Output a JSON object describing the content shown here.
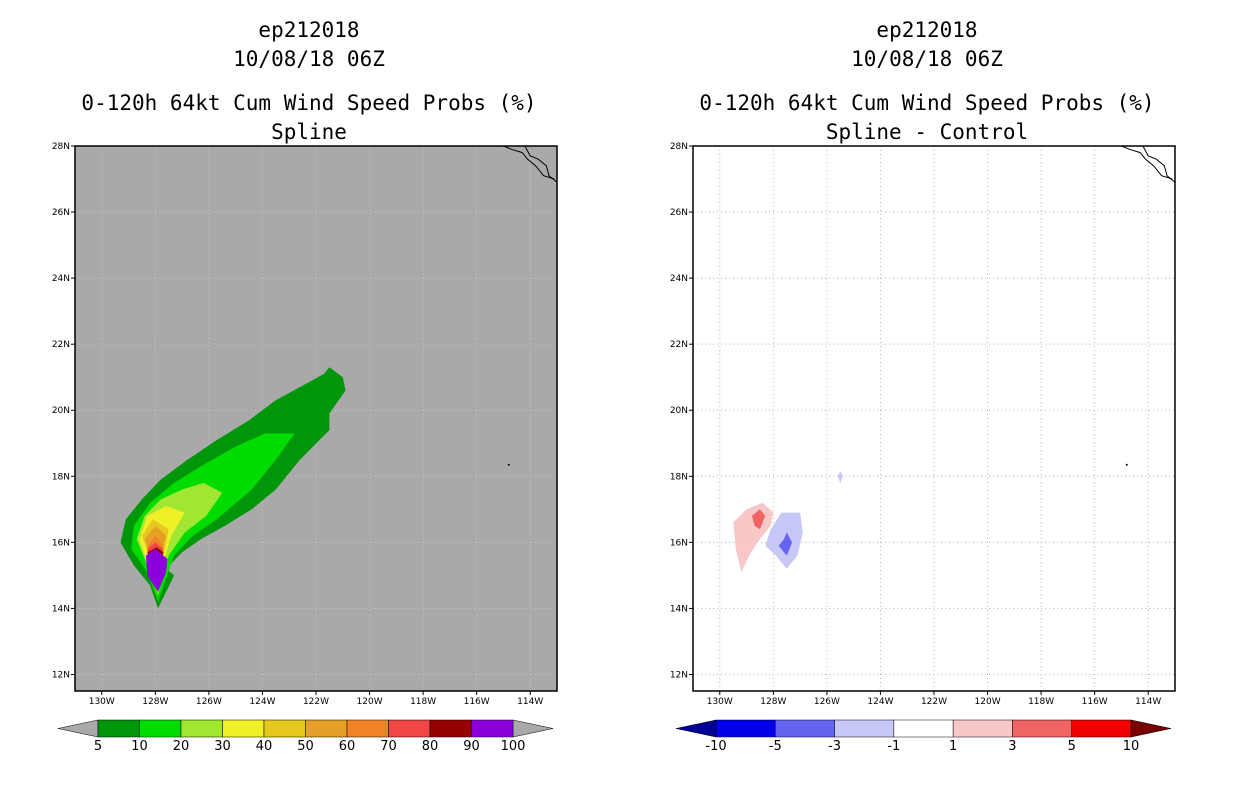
{
  "chart_data": [
    {
      "type": "heatmap",
      "storm_id": "ep212018",
      "datetime": "10/08/18 06Z",
      "title": "0-120h 64kt Cum Wind Speed Probs (%)",
      "subtitle": "Spline",
      "xlim": [
        -131,
        -113
      ],
      "ylim": [
        11.5,
        28
      ],
      "x_ticks": [
        "130W",
        "128W",
        "126W",
        "124W",
        "122W",
        "120W",
        "118W",
        "116W",
        "114W"
      ],
      "y_ticks": [
        "12N",
        "14N",
        "16N",
        "18N",
        "20N",
        "22N",
        "24N",
        "26N",
        "28N"
      ],
      "background_color": "#a9a9a9",
      "colorbar": {
        "labels": [
          "5",
          "10",
          "20",
          "30",
          "40",
          "50",
          "60",
          "70",
          "80",
          "90",
          "100"
        ],
        "colors": [
          "#00960a",
          "#00dc00",
          "#a0e632",
          "#f0f028",
          "#e6c81e",
          "#e6a028",
          "#f08228",
          "#f04646",
          "#960000",
          "#8c00dc"
        ],
        "extend_colors": [
          "#a9a9a9",
          "#a9a9a9"
        ]
      },
      "contours": [
        {
          "level": 5,
          "color": "#00960a",
          "points": [
            [
              -121.5,
              21.3
            ],
            [
              -121.0,
              21.0
            ],
            [
              -120.9,
              20.6
            ],
            [
              -121.5,
              19.9
            ],
            [
              -121.5,
              19.4
            ],
            [
              -122.6,
              18.5
            ],
            [
              -123.5,
              17.6
            ],
            [
              -124.4,
              17.0
            ],
            [
              -125.4,
              16.5
            ],
            [
              -126.3,
              16.1
            ],
            [
              -127.0,
              15.7
            ],
            [
              -127.6,
              15.2
            ],
            [
              -127.3,
              15.0
            ],
            [
              -127.9,
              14.0
            ],
            [
              -128.2,
              14.7
            ],
            [
              -128.8,
              15.3
            ],
            [
              -129.3,
              16.0
            ],
            [
              -129.1,
              16.7
            ],
            [
              -128.5,
              17.3
            ],
            [
              -127.8,
              17.9
            ],
            [
              -126.8,
              18.5
            ],
            [
              -125.7,
              19.1
            ],
            [
              -124.5,
              19.7
            ],
            [
              -123.5,
              20.3
            ],
            [
              -122.6,
              20.7
            ],
            [
              -121.7,
              21.1
            ]
          ]
        },
        {
          "level": 10,
          "color": "#00dc00",
          "points": [
            [
              -122.8,
              19.3
            ],
            [
              -123.5,
              18.5
            ],
            [
              -124.4,
              17.6
            ],
            [
              -125.7,
              16.7
            ],
            [
              -126.6,
              16.2
            ],
            [
              -127.3,
              15.6
            ],
            [
              -127.9,
              14.2
            ],
            [
              -128.3,
              15.1
            ],
            [
              -128.9,
              15.8
            ],
            [
              -128.8,
              16.5
            ],
            [
              -128.2,
              17.2
            ],
            [
              -127.3,
              17.8
            ],
            [
              -126.1,
              18.4
            ],
            [
              -125.0,
              18.9
            ],
            [
              -123.9,
              19.3
            ]
          ]
        },
        {
          "level": 20,
          "color": "#a0e632",
          "points": [
            [
              -125.5,
              17.5
            ],
            [
              -126.1,
              16.8
            ],
            [
              -126.9,
              16.3
            ],
            [
              -127.5,
              15.6
            ],
            [
              -127.9,
              14.4
            ],
            [
              -128.3,
              15.3
            ],
            [
              -128.7,
              16.1
            ],
            [
              -128.4,
              16.8
            ],
            [
              -127.8,
              17.3
            ],
            [
              -127.0,
              17.6
            ],
            [
              -126.2,
              17.8
            ]
          ]
        },
        {
          "level": 30,
          "color": "#f0f028",
          "points": [
            [
              -126.9,
              16.9
            ],
            [
              -127.4,
              16.2
            ],
            [
              -127.7,
              15.4
            ],
            [
              -127.9,
              14.6
            ],
            [
              -128.3,
              15.4
            ],
            [
              -128.6,
              16.1
            ],
            [
              -128.3,
              16.8
            ],
            [
              -127.6,
              17.1
            ]
          ]
        },
        {
          "level": 40,
          "color": "#e6c81e",
          "points": [
            [
              -127.5,
              16.4
            ],
            [
              -127.7,
              15.6
            ],
            [
              -127.9,
              14.7
            ],
            [
              -128.2,
              15.5
            ],
            [
              -128.5,
              16.2
            ],
            [
              -128.1,
              16.7
            ]
          ]
        },
        {
          "level": 50,
          "color": "#e6a028",
          "points": [
            [
              -127.6,
              16.2
            ],
            [
              -127.8,
              15.5
            ],
            [
              -127.9,
              14.8
            ],
            [
              -128.2,
              15.6
            ],
            [
              -128.4,
              16.1
            ],
            [
              -128.0,
              16.5
            ]
          ]
        },
        {
          "level": 60,
          "color": "#f08228",
          "points": [
            [
              -127.7,
              15.9
            ],
            [
              -127.8,
              15.3
            ],
            [
              -127.9,
              14.85
            ],
            [
              -128.2,
              15.5
            ],
            [
              -128.3,
              15.9
            ],
            [
              -128.0,
              16.2
            ]
          ]
        },
        {
          "level": 70,
          "color": "#f04646",
          "points": [
            [
              -127.7,
              15.8
            ],
            [
              -127.8,
              15.2
            ],
            [
              -127.9,
              14.9
            ],
            [
              -128.2,
              15.4
            ],
            [
              -128.3,
              15.8
            ],
            [
              -128.0,
              16.0
            ]
          ]
        },
        {
          "level": 80,
          "color": "#960000",
          "points": [
            [
              -127.7,
              15.7
            ],
            [
              -127.8,
              15.2
            ],
            [
              -127.9,
              14.95
            ],
            [
              -128.2,
              15.4
            ],
            [
              -128.3,
              15.7
            ],
            [
              -127.95,
              15.85
            ]
          ]
        },
        {
          "level": 90,
          "color": "#8c00dc",
          "points": [
            [
              -127.7,
              15.6
            ],
            [
              -127.8,
              15.2
            ],
            [
              -127.9,
              15.0
            ],
            [
              -128.2,
              15.4
            ],
            [
              -128.2,
              15.6
            ],
            [
              -127.95,
              15.7
            ]
          ]
        },
        {
          "level": 100,
          "color": "#8c00dc",
          "points": [
            [
              -127.55,
              15.5
            ],
            [
              -127.6,
              15.1
            ],
            [
              -127.9,
              14.5
            ],
            [
              -128.3,
              15.0
            ],
            [
              -128.35,
              15.6
            ],
            [
              -128.0,
              15.8
            ]
          ]
        }
      ]
    },
    {
      "type": "heatmap",
      "storm_id": "ep212018",
      "datetime": "10/08/18 06Z",
      "title": "0-120h 64kt Cum Wind Speed Probs (%)",
      "subtitle": "Spline - Control",
      "xlim": [
        -131,
        -113
      ],
      "ylim": [
        11.5,
        28
      ],
      "x_ticks": [
        "130W",
        "128W",
        "126W",
        "124W",
        "122W",
        "120W",
        "118W",
        "116W",
        "114W"
      ],
      "y_ticks": [
        "12N",
        "14N",
        "16N",
        "18N",
        "20N",
        "22N",
        "24N",
        "26N",
        "28N"
      ],
      "grid": true,
      "background_color": "#ffffff",
      "colorbar": {
        "labels": [
          "-10",
          "-5",
          "-3",
          "-1",
          "1",
          "3",
          "5",
          "10"
        ],
        "colors": [
          "#0000e6",
          "#6464f0",
          "#c8c8f8",
          "#ffffff",
          "#f8c8c8",
          "#f06464",
          "#f00000"
        ],
        "extend_colors": [
          "#000096",
          "#780000"
        ]
      },
      "contours": [
        {
          "level": 1,
          "color": "#f8c8c8",
          "points": [
            [
              -129.5,
              16.6
            ],
            [
              -129.0,
              17.0
            ],
            [
              -128.4,
              17.2
            ],
            [
              -128.0,
              16.9
            ],
            [
              -128.1,
              16.5
            ],
            [
              -128.6,
              16.0
            ],
            [
              -128.9,
              15.6
            ],
            [
              -129.2,
              15.1
            ],
            [
              -129.4,
              15.8
            ]
          ]
        },
        {
          "level": 3,
          "color": "#f06464",
          "points": [
            [
              -128.8,
              16.8
            ],
            [
              -128.5,
              17.0
            ],
            [
              -128.3,
              16.8
            ],
            [
              -128.5,
              16.4
            ],
            [
              -128.7,
              16.5
            ]
          ]
        },
        {
          "level": -1,
          "color": "#c8c8f8",
          "points": [
            [
              -127.7,
              16.9
            ],
            [
              -127.0,
              16.9
            ],
            [
              -126.9,
              16.3
            ],
            [
              -127.1,
              15.6
            ],
            [
              -127.5,
              15.2
            ],
            [
              -127.9,
              15.6
            ],
            [
              -128.3,
              15.9
            ],
            [
              -128.1,
              16.4
            ]
          ]
        },
        {
          "level": -3,
          "color": "#6464f0",
          "points": [
            [
              -127.5,
              16.3
            ],
            [
              -127.3,
              16.0
            ],
            [
              -127.5,
              15.6
            ],
            [
              -127.8,
              15.9
            ],
            [
              -127.6,
              16.1
            ]
          ]
        },
        {
          "level": -1,
          "color": "#c8c8f8",
          "points": [
            [
              -125.5,
              18.15
            ],
            [
              -125.4,
              18.0
            ],
            [
              -125.5,
              17.8
            ],
            [
              -125.6,
              18.0
            ]
          ]
        }
      ]
    }
  ],
  "coastlines": [
    [
      [
        -114.2,
        28.0
      ],
      [
        -114.0,
        27.7
      ],
      [
        -113.7,
        27.6
      ],
      [
        -113.4,
        27.4
      ],
      [
        -113.3,
        27.1
      ],
      [
        -113.0,
        26.9
      ]
    ],
    [
      [
        -115.0,
        28.0
      ],
      [
        -114.7,
        27.9
      ],
      [
        -114.3,
        27.8
      ],
      [
        -114.1,
        27.6
      ],
      [
        -113.8,
        27.4
      ],
      [
        -113.5,
        27.1
      ],
      [
        -113.1,
        27.0
      ]
    ]
  ],
  "islands": [
    [
      -114.8,
      18.35
    ]
  ]
}
